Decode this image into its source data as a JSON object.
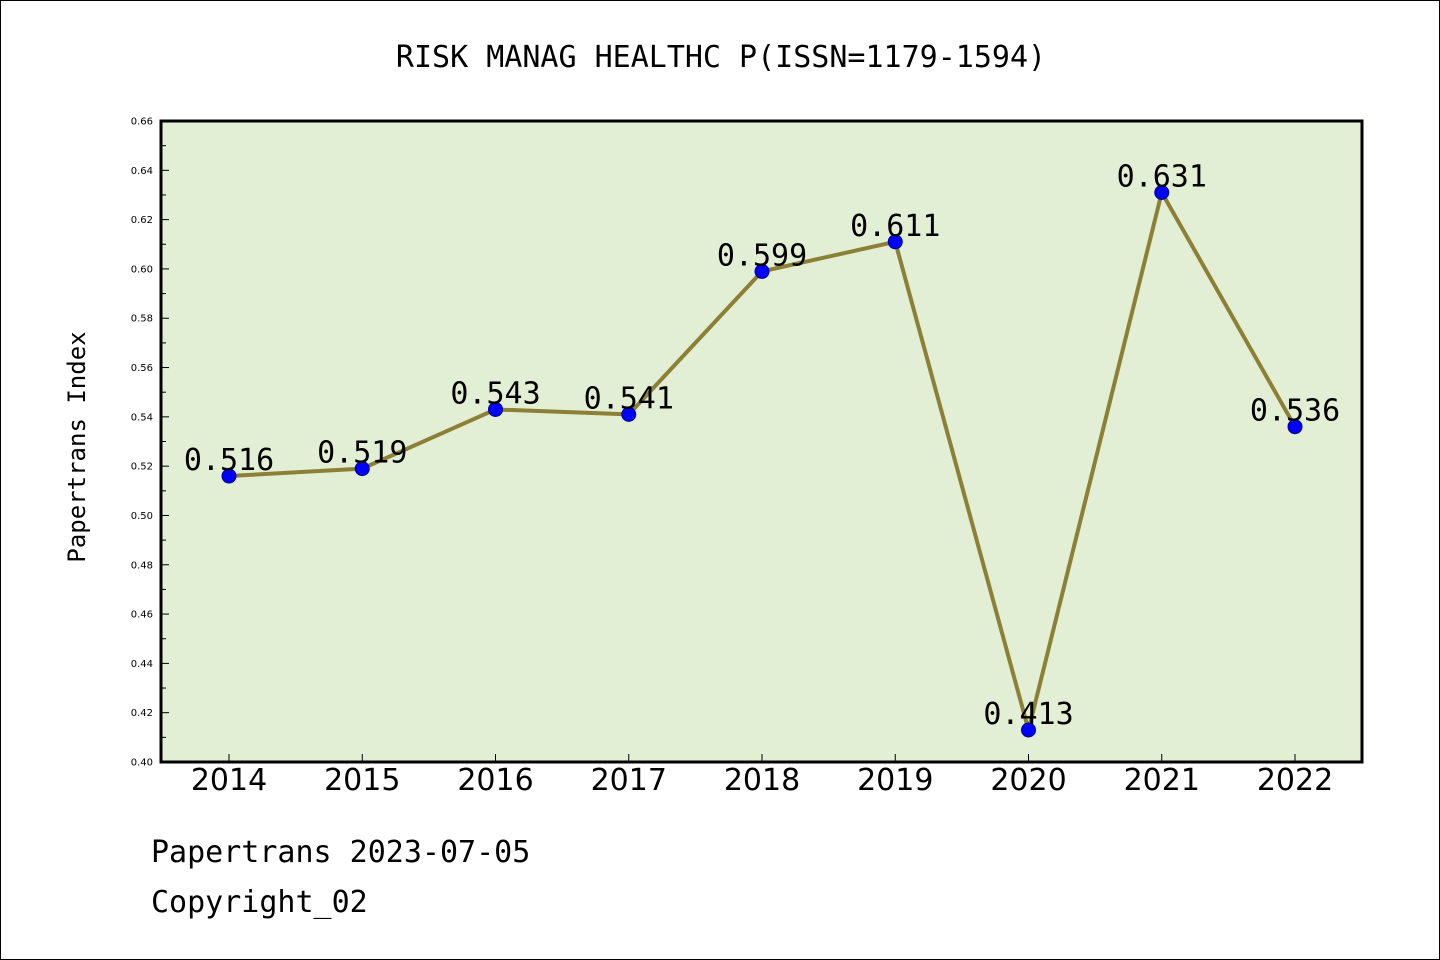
{
  "chart_data": {
    "type": "line",
    "title": "RISK MANAG HEALTHC P(ISSN=1179-1594)",
    "xlabel": "",
    "ylabel": "Papertrans Index",
    "categories": [
      "2014",
      "2015",
      "2016",
      "2017",
      "2018",
      "2019",
      "2020",
      "2021",
      "2022"
    ],
    "series": [
      {
        "values": [
          0.516,
          0.519,
          0.543,
          0.541,
          0.599,
          0.611,
          0.413,
          0.631,
          0.536
        ],
        "value_labels": [
          "0.516",
          "0.519",
          "0.543",
          "0.541",
          "0.599",
          "0.611",
          "0.413",
          "0.631",
          "0.536"
        ]
      }
    ],
    "ylim": [
      0.4,
      0.66
    ],
    "yticks": [
      "0.40",
      "0.42",
      "0.44",
      "0.46",
      "0.48",
      "0.50",
      "0.52",
      "0.54",
      "0.56",
      "0.58",
      "0.60",
      "0.62",
      "0.64",
      "0.66"
    ],
    "grid": false,
    "legend": "none",
    "colors": {
      "plot_background": "#e2efd4",
      "line": "#8b8036",
      "marker_fill": "#0000ff",
      "marker_edge": "#00008b",
      "axes": "#000000"
    }
  },
  "footer": {
    "line1": "Papertrans 2023-07-05",
    "line2": "Copyright_02"
  }
}
